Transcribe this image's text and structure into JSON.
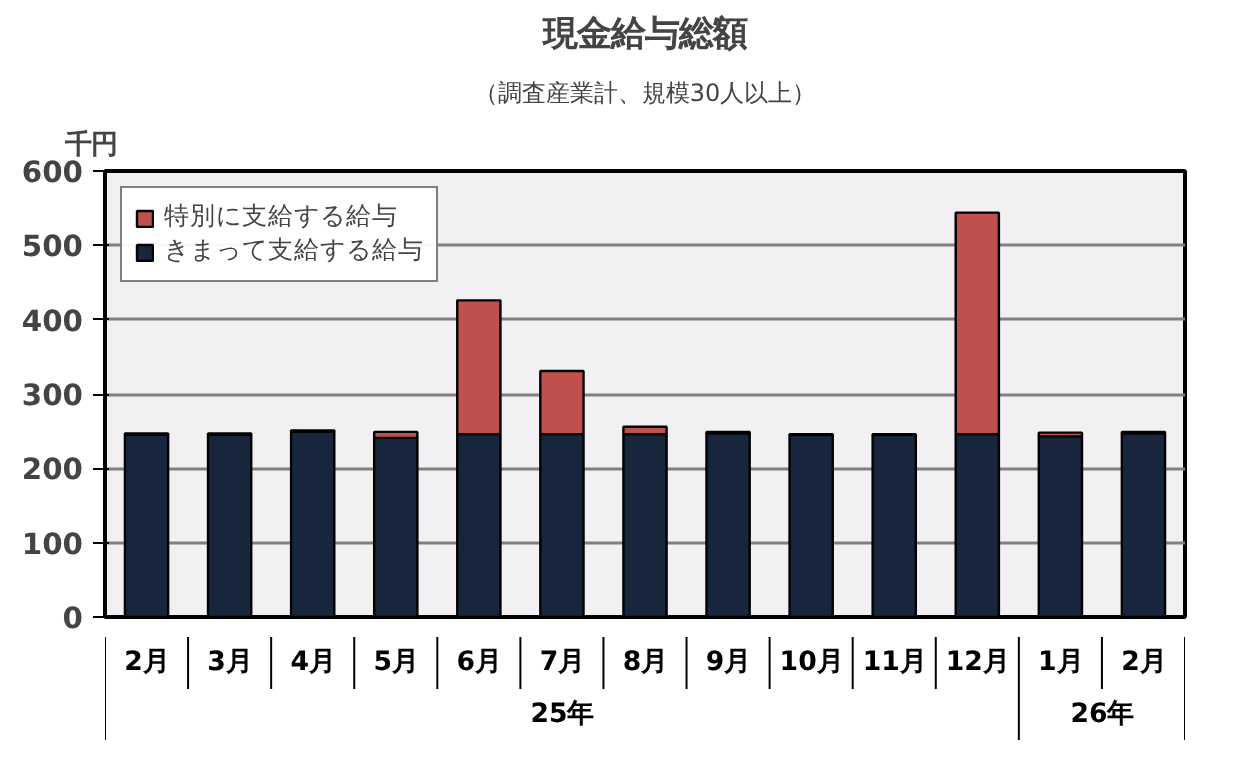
{
  "chart_data": {
    "type": "bar",
    "stacked": true,
    "title": "現金給与総額",
    "subtitle": "（調査産業計、規模30人以上）",
    "ylabel": "千円",
    "categories": [
      "2月",
      "3月",
      "4月",
      "5月",
      "6月",
      "7月",
      "8月",
      "9月",
      "10月",
      "11月",
      "12月",
      "1月",
      "2月"
    ],
    "series": [
      {
        "name": "きまって支給する給与",
        "color": "#17263c",
        "values": [
          245,
          245,
          249,
          241,
          246,
          246,
          246,
          247,
          245,
          245,
          246,
          243,
          247
        ]
      },
      {
        "name": "特別に支給する給与",
        "color": "#c0504d",
        "values": [
          2,
          2,
          2,
          8,
          180,
          85,
          10,
          2,
          1,
          1,
          298,
          5,
          2
        ]
      }
    ],
    "annotations": [
      "25年",
      "26年"
    ],
    "ylim": [
      0,
      600
    ],
    "yticks": [
      0,
      100,
      200,
      300,
      400,
      500,
      600
    ],
    "grid": "y",
    "legend": "top left"
  }
}
